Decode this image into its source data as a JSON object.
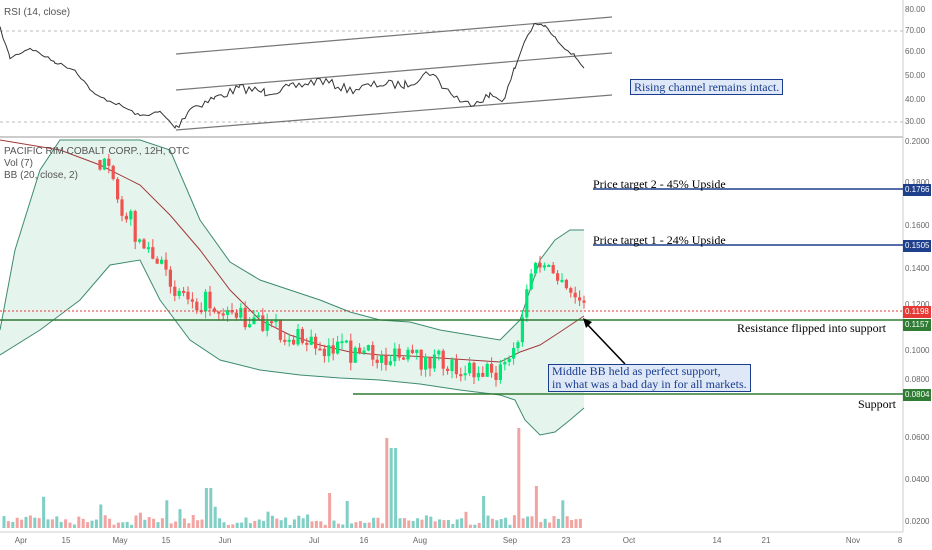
{
  "chart_data": {
    "type": "candlestick",
    "symbol_label": "PACIFIC RIM COBALT CORP., 12H, OTC",
    "volume_label": "Vol (7)",
    "bb_label": "BB (20, close, 2)",
    "rsi_label": "RSI (14, close)",
    "rsi_ticks": [
      "80.00",
      "70.00",
      "60.00",
      "50.00",
      "40.00",
      "30.00"
    ],
    "price_ticks": [
      "0.2000",
      "0.1800",
      "0.1600",
      "0.1400",
      "0.1200",
      "0.1000",
      "0.0800",
      "0.0600",
      "0.0400",
      "0.0200"
    ],
    "date_ticks": [
      "Apr",
      "15",
      "May",
      "15",
      "Jun",
      "Jul",
      "16",
      "Aug",
      "Sep",
      "23",
      "Oct",
      "14",
      "21",
      "Nov",
      "8"
    ],
    "levels": [
      {
        "name": "Price target 2 - 45% Upside",
        "value": 0.1766,
        "tag": "0.1766",
        "color": "#1e3f8c"
      },
      {
        "name": "Price target 1 - 24% Upside",
        "value": 0.1505,
        "tag": "0.1505",
        "color": "#1e3f8c"
      },
      {
        "name": "Resistance flipped into support",
        "value": 0.1157,
        "tag": "0.1157",
        "color": "#2e7d32"
      },
      {
        "name": "Support",
        "value": 0.0804,
        "tag": "0.0804",
        "color": "#2e7d32"
      }
    ],
    "last_price": {
      "value": 0.1198,
      "tag": "0.1198",
      "color": "#e53935"
    },
    "annotations": {
      "rsi_note": "Rising channel remains intact.",
      "bb_note_line1": "Middle BB held as perfect support,",
      "bb_note_line2": "in what was a bad day in for all markets."
    },
    "colors": {
      "up": "#26a69a",
      "up_bright": "#00e676",
      "down": "#ef5350",
      "bb_band": "#3d8b6e",
      "bb_mid": "#a33a3a",
      "rsi": "#333333"
    }
  }
}
